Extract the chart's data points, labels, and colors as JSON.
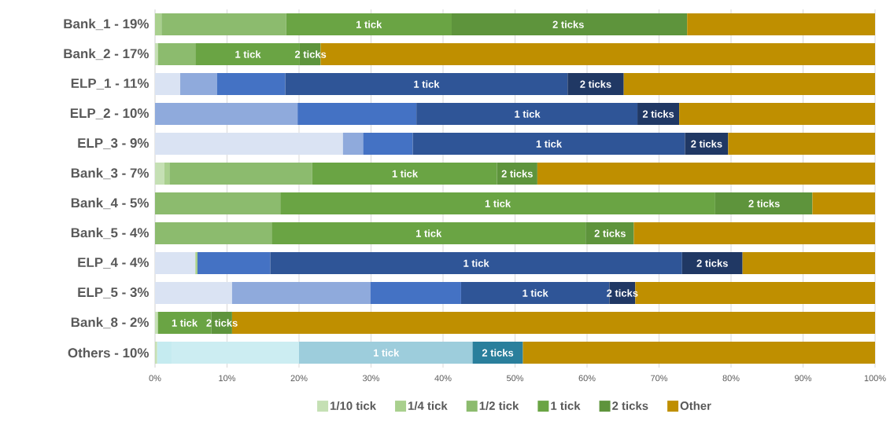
{
  "chart_data": {
    "type": "bar",
    "orientation": "horizontal",
    "stacked": true,
    "grid": "x",
    "legend": "bottom",
    "categories": [
      "Bank_1 - 19%",
      "Bank_2 - 17%",
      "ELP_1 - 11%",
      "ELP_2 - 10%",
      "ELP_3 - 9%",
      "Bank_3 - 7%",
      "Bank_4 - 5%",
      "Bank_5 - 4%",
      "ELP_4 - 4%",
      "ELP_5 - 3%",
      "Bank_8 - 2%",
      "Others - 10%"
    ],
    "series": [
      {
        "name": "1/10 tick",
        "color": "#c5e0b4",
        "colors": [
          "#c5e0b4",
          "#c5e0b4",
          "#dae3f3",
          "#dae3f3",
          "#dae3f3",
          "#c5e0b4",
          "#c5e0b4",
          "#c5e0b4",
          "#dae3f3",
          "#dae3f3",
          "#c5e0b4",
          "#c5e0b4"
        ],
        "values": [
          null,
          0.4,
          3.5,
          null,
          26.1,
          1.3,
          null,
          null,
          5.6,
          10.7,
          0.4,
          0.3
        ]
      },
      {
        "name": "1/4 tick",
        "color": "#a9d08e",
        "colors": [
          "#a9d08e",
          "#a9d08e",
          "#8faadc",
          "#8faadc",
          "#8faadc",
          "#a9d08e",
          "#a9d08e",
          "#a9d08e",
          "#a9d08e",
          "#8faadc",
          "#a9d08e",
          "#c5ebf0"
        ],
        "values": [
          0.9,
          null,
          5.1,
          19.8,
          2.8,
          0.7,
          null,
          null,
          0.3,
          19.2,
          null,
          2.0
        ]
      },
      {
        "name": "1/2 tick",
        "color": "#8cbb6e",
        "colors": [
          "#8cbb6e",
          "#8cbb6e",
          "#4472c4",
          "#4472c4",
          "#4472c4",
          "#8cbb6e",
          "#8cbb6e",
          "#8cbb6e",
          "#4472c4",
          "#4472c4",
          "#8cbb6e",
          "#ccedf2"
        ],
        "values": [
          17.3,
          5.2,
          9.5,
          16.5,
          6.9,
          19.8,
          17.4,
          16.2,
          10.1,
          12.6,
          null,
          17.7
        ]
      },
      {
        "name": "1 tick",
        "color": "#6aa444",
        "colors": [
          "#6aa444",
          "#6aa444",
          "#2f5597",
          "#2f5597",
          "#2f5597",
          "#6aa444",
          "#6aa444",
          "#6aa444",
          "#2f5597",
          "#2f5597",
          "#6aa444",
          "#9dcddc"
        ],
        "values": [
          23.0,
          14.5,
          39.2,
          30.7,
          37.8,
          25.7,
          60.4,
          43.6,
          57.2,
          20.6,
          7.4,
          24.1
        ]
      },
      {
        "name": "2 ticks",
        "color": "#5e943c",
        "colors": [
          "#5e943c",
          "#5e943c",
          "#203864",
          "#203864",
          "#203864",
          "#5e943c",
          "#5e943c",
          "#5e943c",
          "#203864",
          "#203864",
          "#5e943c",
          "#2a7f9c"
        ],
        "values": [
          32.7,
          2.9,
          7.8,
          5.8,
          6.0,
          5.6,
          13.5,
          6.7,
          8.4,
          3.6,
          2.9,
          7.0
        ]
      },
      {
        "name": "Other",
        "color": "#bf8f00",
        "colors": [
          "#bf8f00",
          "#bf8f00",
          "#bf8f00",
          "#bf8f00",
          "#bf8f00",
          "#bf8f00",
          "#bf8f00",
          "#bf8f00",
          "#bf8f00",
          "#bf8f00",
          "#bf8f00",
          "#bf8f00"
        ],
        "values": [
          26.1,
          77.0,
          34.9,
          27.2,
          20.4,
          46.9,
          8.7,
          33.5,
          18.4,
          33.3,
          89.3,
          48.9
        ]
      }
    ],
    "annotations": [
      {
        "text": "1 tick",
        "x": 29.7,
        "y": "Bank_1 - 19%"
      },
      {
        "text": "2 ticks",
        "x": 57.4,
        "y": "Bank_1 - 19%"
      },
      {
        "text": "1 tick",
        "x": 12.9,
        "y": "Bank_2 - 17%"
      },
      {
        "text": "2 ticks",
        "x": 21.6,
        "y": "Bank_2 - 17%"
      },
      {
        "text": "1 tick",
        "x": 37.7,
        "y": "ELP_1 - 11%"
      },
      {
        "text": "2 ticks",
        "x": 61.2,
        "y": "ELP_1 - 11%"
      },
      {
        "text": "1 tick",
        "x": 51.7,
        "y": "ELP_2 - 10%"
      },
      {
        "text": "2 ticks",
        "x": 69.9,
        "y": "ELP_2 - 10%"
      },
      {
        "text": "1 tick",
        "x": 54.7,
        "y": "ELP_3 - 9%"
      },
      {
        "text": "2 ticks",
        "x": 76.6,
        "y": "ELP_3 - 9%"
      },
      {
        "text": "1 tick",
        "x": 34.7,
        "y": "Bank_3 - 7%"
      },
      {
        "text": "2 ticks",
        "x": 50.3,
        "y": "Bank_3 - 7%"
      },
      {
        "text": "1 tick",
        "x": 47.6,
        "y": "Bank_4 - 5%"
      },
      {
        "text": "2 ticks",
        "x": 84.6,
        "y": "Bank_4 - 5%"
      },
      {
        "text": "1 tick",
        "x": 38.0,
        "y": "Bank_5 - 4%"
      },
      {
        "text": "2 ticks",
        "x": 63.2,
        "y": "Bank_5 - 4%"
      },
      {
        "text": "1 tick",
        "x": 44.6,
        "y": "ELP_4 - 4%"
      },
      {
        "text": "2 ticks",
        "x": 77.4,
        "y": "ELP_4 - 4%"
      },
      {
        "text": "1 tick",
        "x": 52.8,
        "y": "ELP_5 - 3%"
      },
      {
        "text": "2 ticks",
        "x": 64.9,
        "y": "ELP_5 - 3%"
      },
      {
        "text": "1 tick",
        "x": 4.1,
        "y": "Bank_8 - 2%"
      },
      {
        "text": "2 ticks",
        "x": 9.3,
        "y": "Bank_8 - 2%"
      },
      {
        "text": "1 tick",
        "x": 32.1,
        "y": "Others - 10%"
      },
      {
        "text": "2 ticks",
        "x": 47.6,
        "y": "Others - 10%"
      }
    ],
    "xlim": [
      0,
      100
    ],
    "xticks": [
      {
        "value": 0,
        "label": "0%"
      },
      {
        "value": 10,
        "label": "10%"
      },
      {
        "value": 20,
        "label": "20%"
      },
      {
        "value": 30,
        "label": "30%"
      },
      {
        "value": 40,
        "label": "40%"
      },
      {
        "value": 50,
        "label": "50%"
      },
      {
        "value": 60,
        "label": "60%"
      },
      {
        "value": 70,
        "label": "70%"
      },
      {
        "value": 80,
        "label": "80%"
      },
      {
        "value": 90,
        "label": "90%"
      },
      {
        "value": 100,
        "label": "100%"
      }
    ]
  }
}
